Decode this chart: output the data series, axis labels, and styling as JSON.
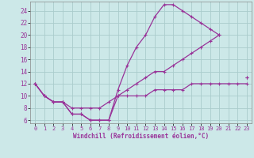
{
  "xlabel": "Windchill (Refroidissement éolien,°C)",
  "background_color": "#cce8e8",
  "grid_color": "#aacccc",
  "line_color": "#993399",
  "xlim": [
    -0.5,
    23.5
  ],
  "ylim": [
    5.5,
    25.5
  ],
  "xticks": [
    0,
    1,
    2,
    3,
    4,
    5,
    6,
    7,
    8,
    9,
    10,
    11,
    12,
    13,
    14,
    15,
    16,
    17,
    18,
    19,
    20,
    21,
    22,
    23
  ],
  "yticks": [
    6,
    8,
    10,
    12,
    14,
    16,
    18,
    20,
    22,
    24
  ],
  "line1_x": [
    0,
    1,
    2,
    3,
    4,
    5,
    6,
    7,
    8,
    9,
    10,
    11,
    12,
    13,
    14,
    15,
    16,
    17,
    18,
    19,
    20,
    21,
    22,
    23
  ],
  "line1_y": [
    12,
    10,
    9,
    9,
    7,
    7,
    6,
    6,
    6,
    11,
    15,
    18,
    20,
    23,
    25,
    25,
    24,
    23,
    22,
    21,
    20,
    null,
    null,
    13
  ],
  "line2_x": [
    0,
    1,
    2,
    3,
    4,
    5,
    6,
    7,
    8,
    9,
    10,
    11,
    12,
    13,
    14,
    15,
    16,
    17,
    18,
    19,
    20,
    21,
    22,
    23
  ],
  "line2_y": [
    12,
    10,
    9,
    9,
    8,
    8,
    8,
    8,
    9,
    10,
    11,
    12,
    13,
    14,
    14,
    15,
    16,
    17,
    18,
    19,
    20,
    null,
    null,
    13
  ],
  "line3_x": [
    0,
    1,
    2,
    3,
    4,
    5,
    6,
    7,
    8,
    9,
    10,
    11,
    12,
    13,
    14,
    15,
    16,
    17,
    18,
    19,
    20,
    21,
    22,
    23
  ],
  "line3_y": [
    12,
    10,
    9,
    9,
    7,
    7,
    6,
    6,
    6,
    10,
    10,
    10,
    10,
    11,
    11,
    11,
    11,
    12,
    12,
    12,
    12,
    12,
    12,
    12
  ]
}
